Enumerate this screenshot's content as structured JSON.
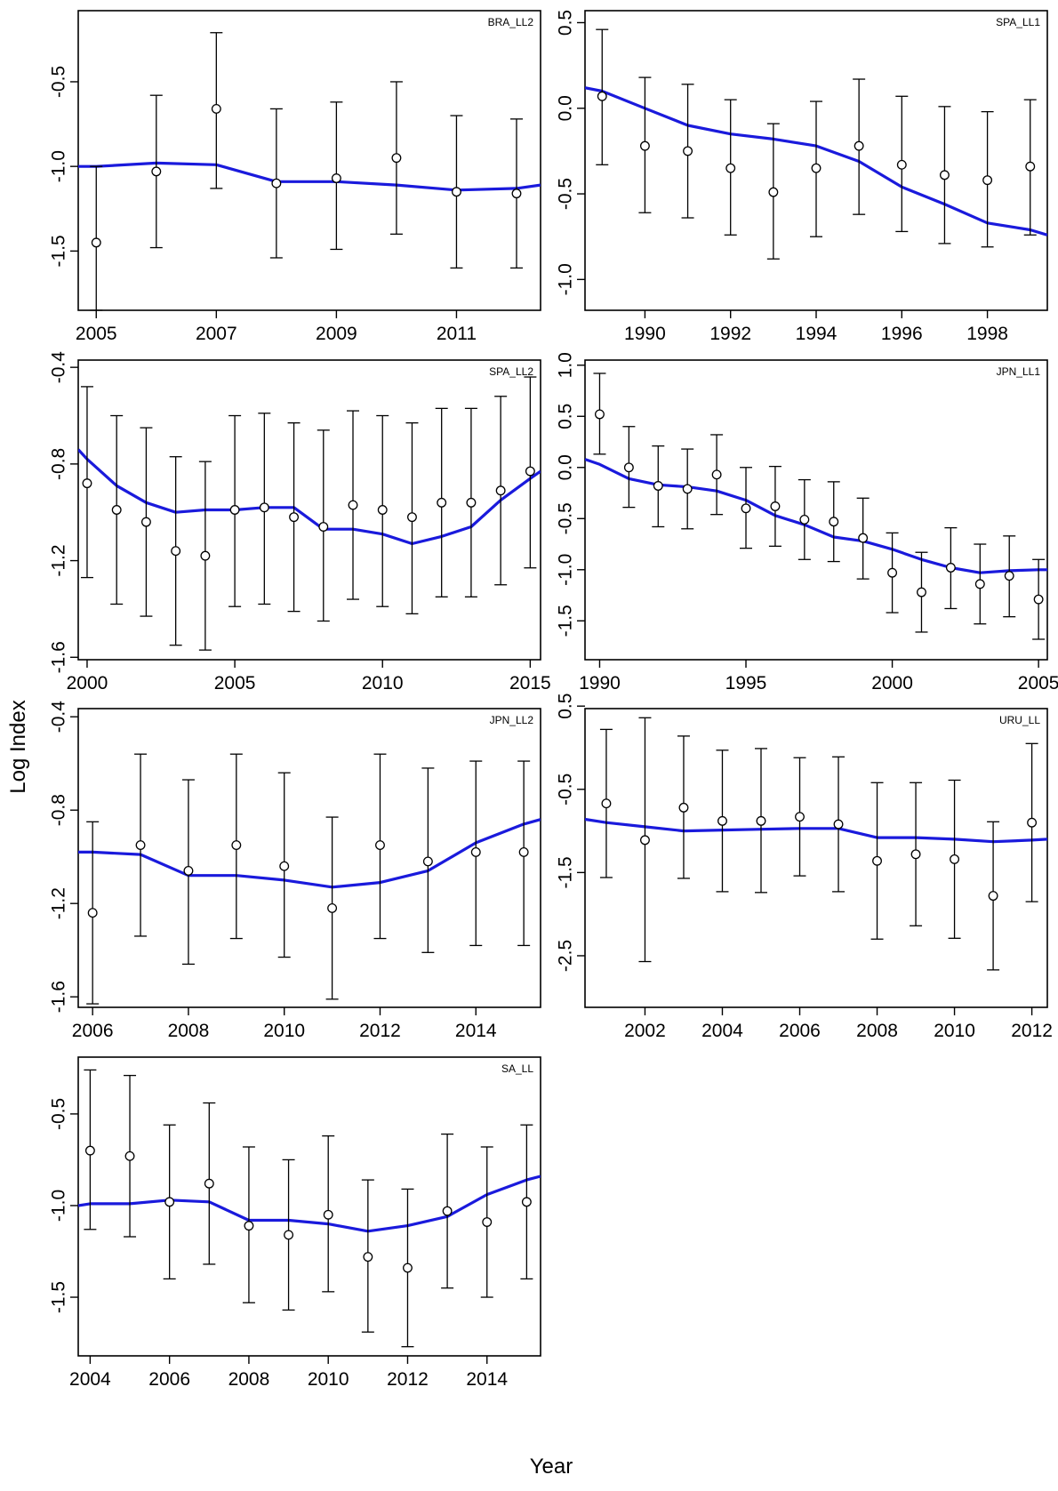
{
  "figure": {
    "ylabel": "Log Index",
    "xlabel": "Year"
  },
  "chart_data": [
    {
      "type": "line",
      "title": "BRA_LL2",
      "xlim": [
        2004.7,
        2012.4
      ],
      "ylim": [
        -1.85,
        -0.08
      ],
      "xticks": [
        2005,
        2007,
        2009,
        2011
      ],
      "yticks": [
        -0.5,
        -1.0,
        -1.5
      ],
      "ytick_labels": [
        "-0.5",
        "-1.0",
        "-1.5"
      ],
      "observed": [
        {
          "x": 2005,
          "y": -1.45,
          "lo": -1.85,
          "hi": -1.0
        },
        {
          "x": 2006,
          "y": -1.03,
          "lo": -1.48,
          "hi": -0.58
        },
        {
          "x": 2007,
          "y": -0.66,
          "lo": -1.13,
          "hi": -0.21
        },
        {
          "x": 2008,
          "y": -1.1,
          "lo": -1.54,
          "hi": -0.66
        },
        {
          "x": 2009,
          "y": -1.07,
          "lo": -1.49,
          "hi": -0.62
        },
        {
          "x": 2010,
          "y": -0.95,
          "lo": -1.4,
          "hi": -0.5
        },
        {
          "x": 2011,
          "y": -1.15,
          "lo": -1.6,
          "hi": -0.7
        },
        {
          "x": 2012,
          "y": -1.16,
          "lo": -1.6,
          "hi": -0.72
        }
      ],
      "fitted": {
        "x": [
          2004.7,
          2005,
          2006,
          2007,
          2008,
          2009,
          2010,
          2011,
          2012,
          2012.4
        ],
        "y": [
          -1.0,
          -1.0,
          -0.98,
          -0.99,
          -1.09,
          -1.09,
          -1.11,
          -1.14,
          -1.13,
          -1.11
        ]
      }
    },
    {
      "type": "line",
      "title": "SPA_LL1",
      "xlim": [
        1988.6,
        1999.4
      ],
      "ylim": [
        -1.18,
        0.57
      ],
      "xticks": [
        1990,
        1992,
        1994,
        1996,
        1998
      ],
      "yticks": [
        0.5,
        0.0,
        -0.5,
        -1.0
      ],
      "ytick_labels": [
        "0.5",
        "0.0",
        "-0.5",
        "-1.0"
      ],
      "observed": [
        {
          "x": 1989,
          "y": 0.07,
          "lo": -0.33,
          "hi": 0.46
        },
        {
          "x": 1990,
          "y": -0.22,
          "lo": -0.61,
          "hi": 0.18
        },
        {
          "x": 1991,
          "y": -0.25,
          "lo": -0.64,
          "hi": 0.14
        },
        {
          "x": 1992,
          "y": -0.35,
          "lo": -0.74,
          "hi": 0.05
        },
        {
          "x": 1993,
          "y": -0.49,
          "lo": -0.88,
          "hi": -0.09
        },
        {
          "x": 1994,
          "y": -0.35,
          "lo": -0.75,
          "hi": 0.04
        },
        {
          "x": 1995,
          "y": -0.22,
          "lo": -0.62,
          "hi": 0.17
        },
        {
          "x": 1996,
          "y": -0.33,
          "lo": -0.72,
          "hi": 0.07
        },
        {
          "x": 1997,
          "y": -0.39,
          "lo": -0.79,
          "hi": 0.01
        },
        {
          "x": 1998,
          "y": -0.42,
          "lo": -0.81,
          "hi": -0.02
        },
        {
          "x": 1999,
          "y": -0.34,
          "lo": -0.74,
          "hi": 0.05
        }
      ],
      "fitted": {
        "x": [
          1988.6,
          1989,
          1990,
          1991,
          1992,
          1993,
          1994,
          1995,
          1996,
          1997,
          1998,
          1999,
          1999.4
        ],
        "y": [
          0.12,
          0.1,
          0.0,
          -0.1,
          -0.15,
          -0.18,
          -0.22,
          -0.31,
          -0.46,
          -0.56,
          -0.67,
          -0.71,
          -0.74
        ]
      }
    },
    {
      "type": "line",
      "title": "SPA_LL2",
      "xlim": [
        1999.7,
        2015.35
      ],
      "ylim": [
        -1.61,
        -0.37
      ],
      "xticks": [
        2000,
        2005,
        2010,
        2015
      ],
      "yticks": [
        -0.4,
        -0.8,
        -1.2,
        -1.6
      ],
      "ytick_labels": [
        "-0.4",
        "-0.8",
        "-1.2",
        "-1.6"
      ],
      "observed": [
        {
          "x": 2000,
          "y": -0.88,
          "lo": -1.27,
          "hi": -0.48
        },
        {
          "x": 2001,
          "y": -0.99,
          "lo": -1.38,
          "hi": -0.6
        },
        {
          "x": 2002,
          "y": -1.04,
          "lo": -1.43,
          "hi": -0.65
        },
        {
          "x": 2003,
          "y": -1.16,
          "lo": -1.55,
          "hi": -0.77
        },
        {
          "x": 2004,
          "y": -1.18,
          "lo": -1.57,
          "hi": -0.79
        },
        {
          "x": 2005,
          "y": -0.99,
          "lo": -1.39,
          "hi": -0.6
        },
        {
          "x": 2006,
          "y": -0.98,
          "lo": -1.38,
          "hi": -0.59
        },
        {
          "x": 2007,
          "y": -1.02,
          "lo": -1.41,
          "hi": -0.63
        },
        {
          "x": 2008,
          "y": -1.06,
          "lo": -1.45,
          "hi": -0.66
        },
        {
          "x": 2009,
          "y": -0.97,
          "lo": -1.36,
          "hi": -0.58
        },
        {
          "x": 2010,
          "y": -0.99,
          "lo": -1.39,
          "hi": -0.6
        },
        {
          "x": 2011,
          "y": -1.02,
          "lo": -1.42,
          "hi": -0.63
        },
        {
          "x": 2012,
          "y": -0.96,
          "lo": -1.35,
          "hi": -0.57
        },
        {
          "x": 2013,
          "y": -0.96,
          "lo": -1.35,
          "hi": -0.57
        },
        {
          "x": 2014,
          "y": -0.91,
          "lo": -1.3,
          "hi": -0.52
        },
        {
          "x": 2015,
          "y": -0.83,
          "lo": -1.23,
          "hi": -0.44
        }
      ],
      "fitted": {
        "x": [
          1999.7,
          2000,
          2001,
          2002,
          2003,
          2004,
          2005,
          2006,
          2007,
          2008,
          2009,
          2010,
          2011,
          2012,
          2013,
          2014,
          2015,
          2015.35
        ],
        "y": [
          -0.74,
          -0.78,
          -0.89,
          -0.96,
          -1.0,
          -0.99,
          -0.99,
          -0.98,
          -0.98,
          -1.07,
          -1.07,
          -1.09,
          -1.13,
          -1.1,
          -1.06,
          -0.95,
          -0.86,
          -0.83
        ]
      }
    },
    {
      "type": "line",
      "title": "JPN_LL1",
      "xlim": [
        1989.5,
        2005.3
      ],
      "ylim": [
        -1.88,
        1.05
      ],
      "xticks": [
        1990,
        1995,
        2000,
        2005
      ],
      "yticks": [
        1.0,
        0.5,
        0.0,
        -0.5,
        -1.0,
        -1.5
      ],
      "ytick_labels": [
        "1.0",
        "0.5",
        "0.0",
        "-0.5",
        "-1.0",
        "-1.5"
      ],
      "observed": [
        {
          "x": 1990,
          "y": 0.52,
          "lo": 0.13,
          "hi": 0.92
        },
        {
          "x": 1991,
          "y": 0.0,
          "lo": -0.39,
          "hi": 0.4
        },
        {
          "x": 1992,
          "y": -0.18,
          "lo": -0.58,
          "hi": 0.21
        },
        {
          "x": 1993,
          "y": -0.21,
          "lo": -0.6,
          "hi": 0.18
        },
        {
          "x": 1994,
          "y": -0.07,
          "lo": -0.46,
          "hi": 0.32
        },
        {
          "x": 1995,
          "y": -0.4,
          "lo": -0.79,
          "hi": 0.0
        },
        {
          "x": 1996,
          "y": -0.38,
          "lo": -0.77,
          "hi": 0.01
        },
        {
          "x": 1997,
          "y": -0.51,
          "lo": -0.9,
          "hi": -0.12
        },
        {
          "x": 1998,
          "y": -0.53,
          "lo": -0.92,
          "hi": -0.14
        },
        {
          "x": 1999,
          "y": -0.69,
          "lo": -1.09,
          "hi": -0.3
        },
        {
          "x": 2000,
          "y": -1.03,
          "lo": -1.42,
          "hi": -0.64
        },
        {
          "x": 2001,
          "y": -1.22,
          "lo": -1.61,
          "hi": -0.83
        },
        {
          "x": 2002,
          "y": -0.98,
          "lo": -1.38,
          "hi": -0.59
        },
        {
          "x": 2003,
          "y": -1.14,
          "lo": -1.53,
          "hi": -0.75
        },
        {
          "x": 2004,
          "y": -1.06,
          "lo": -1.46,
          "hi": -0.67
        },
        {
          "x": 2005,
          "y": -1.29,
          "lo": -1.68,
          "hi": -0.9
        }
      ],
      "fitted": {
        "x": [
          1989.5,
          1990,
          1991,
          1992,
          1993,
          1994,
          1995,
          1996,
          1997,
          1998,
          1999,
          2000,
          2001,
          2002,
          2003,
          2004,
          2005,
          2005.3
        ],
        "y": [
          0.08,
          0.03,
          -0.11,
          -0.17,
          -0.19,
          -0.23,
          -0.32,
          -0.47,
          -0.56,
          -0.68,
          -0.72,
          -0.8,
          -0.9,
          -0.98,
          -1.03,
          -1.01,
          -1.0,
          -1.0
        ]
      }
    },
    {
      "type": "line",
      "title": "JPN_LL2",
      "xlim": [
        2005.7,
        2015.35
      ],
      "ylim": [
        -1.645,
        -0.365
      ],
      "xticks": [
        2006,
        2008,
        2010,
        2012,
        2014
      ],
      "yticks": [
        -0.4,
        -0.8,
        -1.2,
        -1.6
      ],
      "ytick_labels": [
        "-0.4",
        "-0.8",
        "-1.2",
        "-1.6"
      ],
      "observed": [
        {
          "x": 2006,
          "y": -1.24,
          "lo": -1.63,
          "hi": -0.85
        },
        {
          "x": 2007,
          "y": -0.95,
          "lo": -1.34,
          "hi": -0.56
        },
        {
          "x": 2008,
          "y": -1.06,
          "lo": -1.46,
          "hi": -0.67
        },
        {
          "x": 2009,
          "y": -0.95,
          "lo": -1.35,
          "hi": -0.56
        },
        {
          "x": 2010,
          "y": -1.04,
          "lo": -1.43,
          "hi": -0.64
        },
        {
          "x": 2011,
          "y": -1.22,
          "lo": -1.61,
          "hi": -0.83
        },
        {
          "x": 2012,
          "y": -0.95,
          "lo": -1.35,
          "hi": -0.56
        },
        {
          "x": 2013,
          "y": -1.02,
          "lo": -1.41,
          "hi": -0.62
        },
        {
          "x": 2014,
          "y": -0.98,
          "lo": -1.38,
          "hi": -0.59
        },
        {
          "x": 2015,
          "y": -0.98,
          "lo": -1.38,
          "hi": -0.59
        }
      ],
      "fitted": {
        "x": [
          2005.7,
          2006,
          2007,
          2008,
          2009,
          2010,
          2011,
          2012,
          2013,
          2014,
          2015,
          2015.35
        ],
        "y": [
          -0.98,
          -0.98,
          -0.99,
          -1.08,
          -1.08,
          -1.1,
          -1.13,
          -1.11,
          -1.06,
          -0.94,
          -0.86,
          -0.84
        ]
      }
    },
    {
      "type": "line",
      "title": "URU_LL",
      "xlim": [
        2000.45,
        2012.4
      ],
      "ylim": [
        -3.12,
        0.47
      ],
      "xticks": [
        2002,
        2004,
        2006,
        2008,
        2010,
        2012
      ],
      "yticks": [
        0.5,
        -0.5,
        -1.5,
        -2.5
      ],
      "ytick_labels": [
        "0.5",
        "-0.5",
        "-1.5",
        "-2.5"
      ],
      "observed": [
        {
          "x": 2001,
          "y": -0.67,
          "lo": -1.56,
          "hi": 0.22
        },
        {
          "x": 2002,
          "y": -1.11,
          "lo": -2.57,
          "hi": 0.36
        },
        {
          "x": 2003,
          "y": -0.72,
          "lo": -1.57,
          "hi": 0.14
        },
        {
          "x": 2004,
          "y": -0.88,
          "lo": -1.73,
          "hi": -0.03
        },
        {
          "x": 2005,
          "y": -0.88,
          "lo": -1.74,
          "hi": -0.01
        },
        {
          "x": 2006,
          "y": -0.83,
          "lo": -1.54,
          "hi": -0.12
        },
        {
          "x": 2007,
          "y": -0.92,
          "lo": -1.73,
          "hi": -0.11
        },
        {
          "x": 2008,
          "y": -1.36,
          "lo": -2.3,
          "hi": -0.42
        },
        {
          "x": 2009,
          "y": -1.28,
          "lo": -2.14,
          "hi": -0.42
        },
        {
          "x": 2010,
          "y": -1.34,
          "lo": -2.29,
          "hi": -0.39
        },
        {
          "x": 2011,
          "y": -1.78,
          "lo": -2.67,
          "hi": -0.89
        },
        {
          "x": 2012,
          "y": -0.9,
          "lo": -1.85,
          "hi": 0.05
        }
      ],
      "fitted": {
        "x": [
          2000.45,
          2001,
          2002,
          2003,
          2004,
          2005,
          2006,
          2007,
          2008,
          2009,
          2010,
          2011,
          2012,
          2012.4
        ],
        "y": [
          -0.86,
          -0.9,
          -0.95,
          -1.0,
          -0.99,
          -0.98,
          -0.97,
          -0.97,
          -1.08,
          -1.08,
          -1.1,
          -1.13,
          -1.11,
          -1.1
        ]
      }
    },
    {
      "type": "line",
      "title": "SA_LL",
      "xlim": [
        2003.7,
        2015.35
      ],
      "ylim": [
        -1.82,
        -0.19
      ],
      "xticks": [
        2004,
        2006,
        2008,
        2010,
        2012,
        2014
      ],
      "yticks": [
        -0.5,
        -1.0,
        -1.5
      ],
      "ytick_labels": [
        "-0.5",
        "-1.0",
        "-1.5"
      ],
      "observed": [
        {
          "x": 2004,
          "y": -0.7,
          "lo": -1.13,
          "hi": -0.26
        },
        {
          "x": 2005,
          "y": -0.73,
          "lo": -1.17,
          "hi": -0.29
        },
        {
          "x": 2006,
          "y": -0.98,
          "lo": -1.4,
          "hi": -0.56
        },
        {
          "x": 2007,
          "y": -0.88,
          "lo": -1.32,
          "hi": -0.44
        },
        {
          "x": 2008,
          "y": -1.11,
          "lo": -1.53,
          "hi": -0.68
        },
        {
          "x": 2009,
          "y": -1.16,
          "lo": -1.57,
          "hi": -0.75
        },
        {
          "x": 2010,
          "y": -1.05,
          "lo": -1.47,
          "hi": -0.62
        },
        {
          "x": 2011,
          "y": -1.28,
          "lo": -1.69,
          "hi": -0.86
        },
        {
          "x": 2012,
          "y": -1.34,
          "lo": -1.77,
          "hi": -0.91
        },
        {
          "x": 2013,
          "y": -1.03,
          "lo": -1.45,
          "hi": -0.61
        },
        {
          "x": 2014,
          "y": -1.09,
          "lo": -1.5,
          "hi": -0.68
        },
        {
          "x": 2015,
          "y": -0.98,
          "lo": -1.4,
          "hi": -0.56
        }
      ],
      "fitted": {
        "x": [
          2003.7,
          2004,
          2005,
          2006,
          2007,
          2008,
          2009,
          2010,
          2011,
          2012,
          2013,
          2014,
          2015,
          2015.35
        ],
        "y": [
          -1.0,
          -0.99,
          -0.99,
          -0.97,
          -0.98,
          -1.08,
          -1.08,
          -1.1,
          -1.14,
          -1.11,
          -1.06,
          -0.94,
          -0.86,
          -0.84
        ]
      }
    }
  ]
}
